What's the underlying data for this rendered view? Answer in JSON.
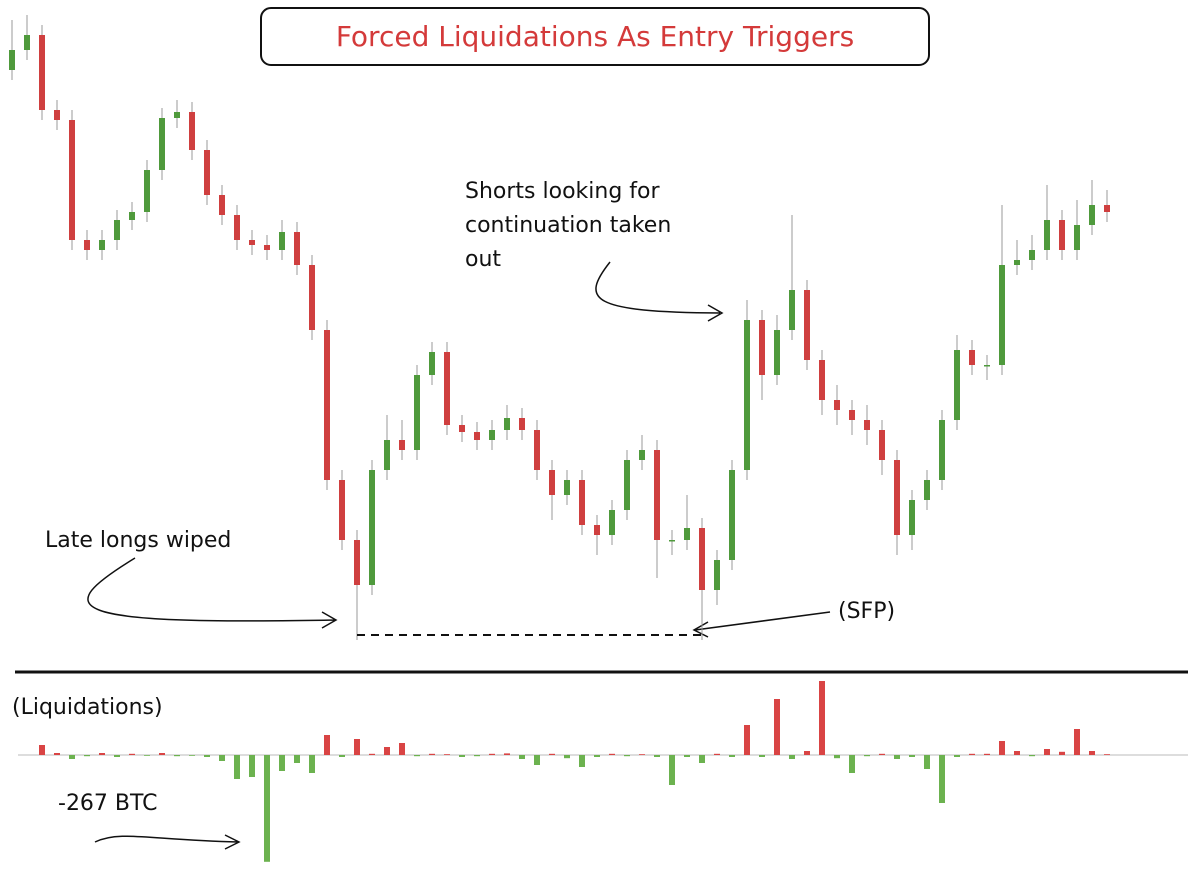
{
  "chart_data": [
    {
      "type": "candlestick",
      "title": "Forced Liquidations As Entry Triggers",
      "open": [
        590,
        610,
        625,
        550,
        540,
        420,
        410,
        420,
        440,
        448,
        490,
        542,
        548,
        510,
        465,
        445,
        420,
        415,
        410,
        428,
        395,
        330,
        180,
        120,
        75,
        190,
        220,
        210,
        285,
        308,
        235,
        228,
        220,
        230,
        242,
        230,
        190,
        165,
        180,
        135,
        125,
        150,
        200,
        210,
        120,
        120,
        132,
        70,
        100,
        190,
        340,
        285,
        330,
        370,
        300,
        260,
        250,
        240,
        230,
        200,
        125,
        160,
        180,
        240,
        310,
        295,
        295,
        395,
        400,
        410,
        440,
        410,
        435,
        455
      ],
      "high": [
        640,
        645,
        635,
        560,
        550,
        430,
        430,
        450,
        458,
        500,
        552,
        560,
        558,
        520,
        475,
        455,
        430,
        425,
        440,
        438,
        405,
        340,
        190,
        130,
        200,
        245,
        240,
        295,
        318,
        318,
        245,
        238,
        240,
        255,
        252,
        240,
        200,
        190,
        190,
        145,
        160,
        210,
        225,
        220,
        130,
        165,
        142,
        110,
        200,
        360,
        350,
        345,
        445,
        380,
        310,
        275,
        260,
        255,
        240,
        210,
        170,
        190,
        250,
        325,
        320,
        305,
        455,
        420,
        425,
        475,
        450,
        460,
        480,
        470
      ],
      "low": [
        580,
        600,
        540,
        530,
        410,
        400,
        400,
        410,
        430,
        438,
        480,
        532,
        500,
        455,
        435,
        410,
        405,
        400,
        400,
        385,
        320,
        170,
        110,
        20,
        65,
        180,
        200,
        200,
        275,
        225,
        218,
        210,
        210,
        220,
        220,
        180,
        140,
        155,
        125,
        105,
        115,
        140,
        190,
        82,
        105,
        110,
        20,
        55,
        90,
        180,
        260,
        275,
        320,
        290,
        245,
        235,
        225,
        215,
        185,
        105,
        110,
        150,
        170,
        230,
        285,
        280,
        285,
        385,
        390,
        400,
        400,
        400,
        425,
        438
      ],
      "close": [
        610,
        625,
        550,
        540,
        420,
        410,
        420,
        440,
        448,
        490,
        542,
        548,
        510,
        465,
        445,
        420,
        415,
        410,
        428,
        395,
        330,
        180,
        120,
        75,
        190,
        220,
        210,
        285,
        308,
        235,
        228,
        220,
        230,
        242,
        230,
        190,
        165,
        180,
        135,
        125,
        150,
        200,
        210,
        120,
        120,
        132,
        70,
        100,
        190,
        340,
        285,
        330,
        370,
        300,
        260,
        250,
        240,
        230,
        200,
        125,
        160,
        180,
        240,
        310,
        295,
        295,
        395,
        400,
        410,
        440,
        410,
        435,
        455,
        448
      ],
      "up_color": "#4f9a3c",
      "down_color": "#cf3f3f",
      "ylim": [
        0,
        660
      ],
      "annotations": {
        "shorts": [
          "Shorts looking for",
          "continuation taken",
          "out"
        ],
        "longs": "Late longs wiped",
        "sfp": "(SFP)"
      }
    },
    {
      "type": "bar",
      "title": "(Liquidations)",
      "values": [
        0,
        0,
        25,
        5,
        -10,
        -3,
        5,
        -5,
        3,
        -2,
        5,
        -3,
        -2,
        -5,
        -15,
        -60,
        -55,
        -267,
        -40,
        -20,
        -45,
        50,
        -5,
        40,
        3,
        20,
        30,
        -3,
        3,
        2,
        -5,
        -3,
        3,
        4,
        -10,
        -25,
        3,
        -8,
        -30,
        -5,
        3,
        -3,
        2,
        -5,
        -75,
        -5,
        -20,
        3,
        -5,
        75,
        -5,
        140,
        -10,
        10,
        185,
        -8,
        -45,
        -3,
        3,
        -10,
        -5,
        -35,
        -120,
        -5,
        3,
        3,
        35,
        10,
        -3,
        15,
        8,
        65,
        10,
        2
      ],
      "positive_color": "#d94444",
      "negative_color": "#6cb24f",
      "ylim": [
        -270,
        190
      ],
      "annotation": "-267 BTC"
    }
  ]
}
